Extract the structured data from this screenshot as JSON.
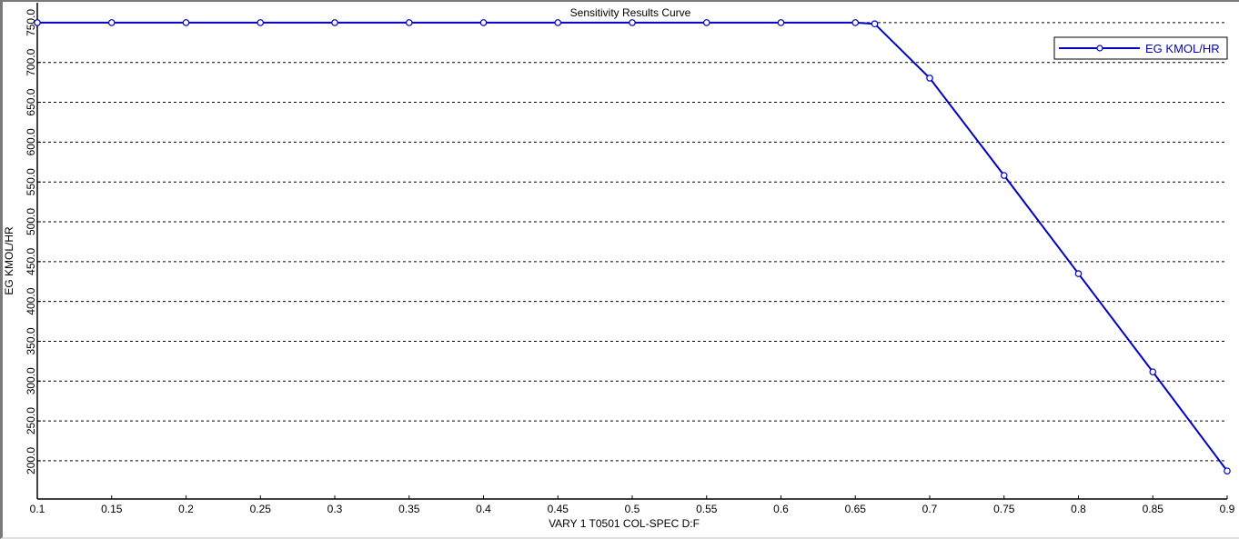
{
  "chart_data": {
    "type": "line",
    "title": "Sensitivity Results Curve",
    "xlabel": "VARY   1 T0501 COL-SPEC D:F",
    "ylabel": "EG KMOL/HR",
    "xlim": [
      0.1,
      0.9
    ],
    "ylim": [
      152,
      775
    ],
    "x_ticks": [
      "0.1",
      "0.15",
      "0.2",
      "0.25",
      "0.3",
      "0.35",
      "0.4",
      "0.45",
      "0.5",
      "0.55",
      "0.6",
      "0.65",
      "0.7",
      "0.75",
      "0.8",
      "0.85",
      "0.9"
    ],
    "y_ticks": [
      "200.0",
      "250.0",
      "300.0",
      "350.0",
      "400.0",
      "450.0",
      "500.0",
      "550.0",
      "600.0",
      "650.0",
      "700.0",
      "750.0"
    ],
    "grid": "horizontal dashed",
    "legend_placement": "top-right",
    "series": [
      {
        "name": "EG KMOL/HR",
        "color": "#0000c0",
        "marker": "open-circle",
        "x": [
          0.1,
          0.15,
          0.2,
          0.25,
          0.3,
          0.35,
          0.4,
          0.45,
          0.5,
          0.55,
          0.6,
          0.65,
          0.663,
          0.7,
          0.75,
          0.8,
          0.85,
          0.9
        ],
        "y": [
          750,
          750,
          750,
          750,
          750,
          750,
          750,
          750,
          750,
          750,
          750,
          750,
          748.5,
          680.4,
          558.2,
          434.9,
          311.6,
          187.2
        ]
      }
    ]
  }
}
